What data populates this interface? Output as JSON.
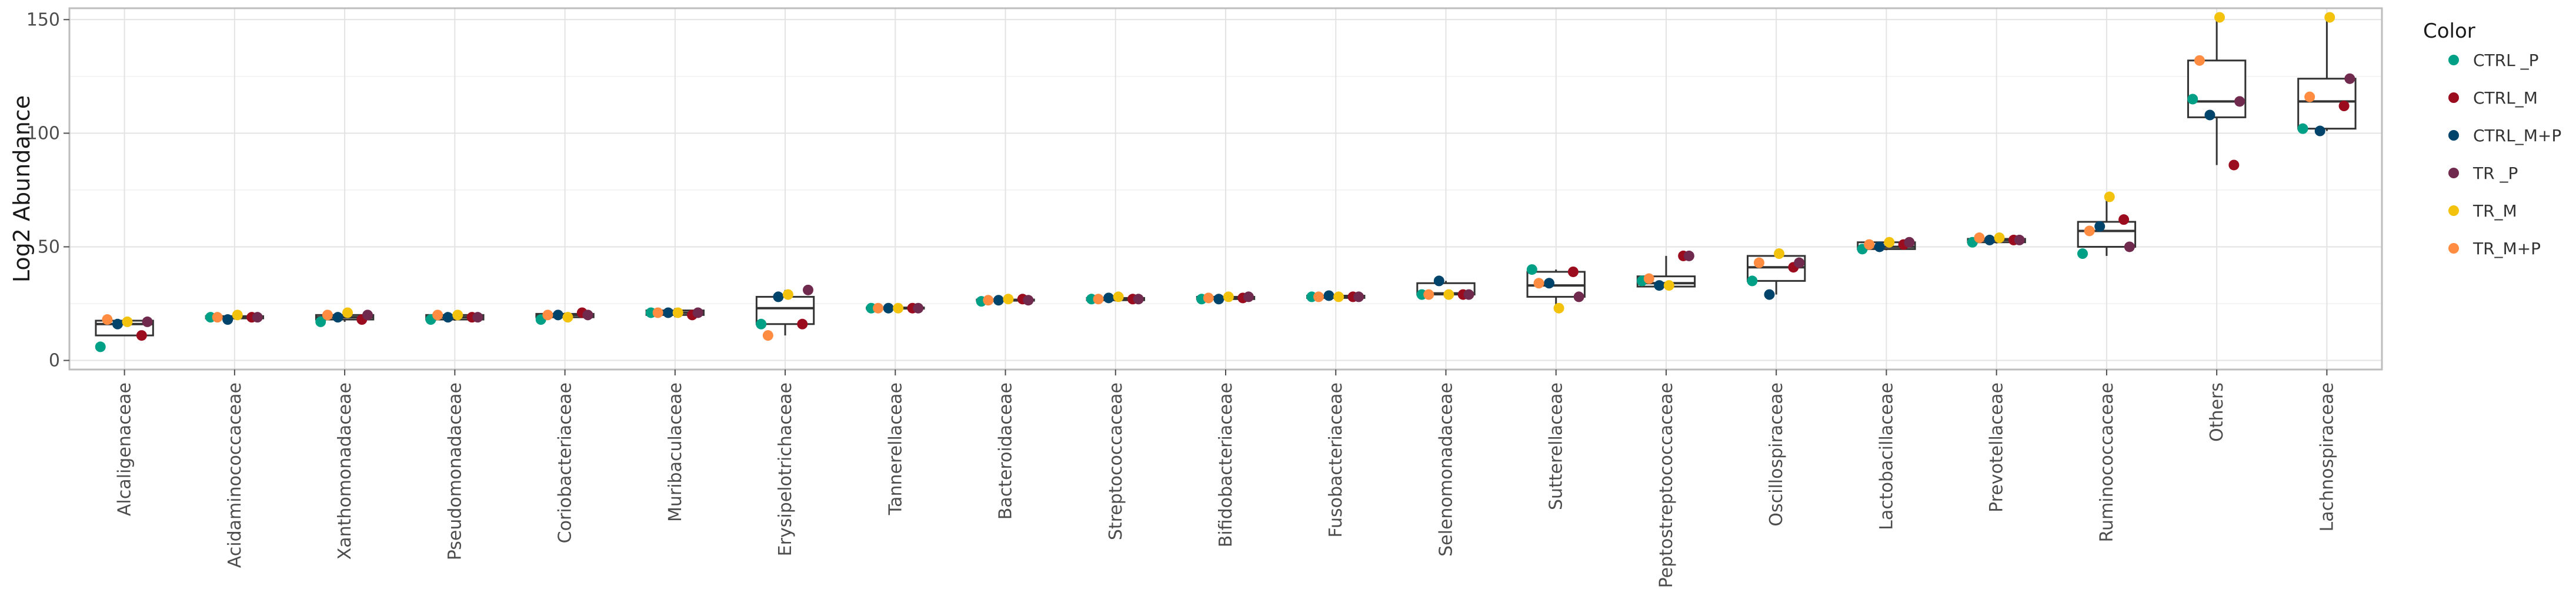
{
  "chart_data": {
    "type": "box",
    "title": "",
    "xlabel": "",
    "ylabel": "Log2 Abundance",
    "ylim": [
      -4,
      155
    ],
    "y_ticks": [
      0,
      50,
      100,
      150
    ],
    "grid": true,
    "legend_position": "right",
    "legend": {
      "title": "Color",
      "entries": [
        {
          "name": "CTRL _P",
          "color": "#00a087"
        },
        {
          "name": "CTRL_M",
          "color": "#9b0d1e"
        },
        {
          "name": "CTRL_M+P",
          "color": "#00446b"
        },
        {
          "name": "TR _P",
          "color": "#702a4e"
        },
        {
          "name": "TR_M",
          "color": "#f2c20c"
        },
        {
          "name": "TR_M+P",
          "color": "#ff8c40"
        }
      ]
    },
    "categories": [
      "Alcaligenaceae",
      "Acidaminococcaceae",
      "Xanthomonadaceae",
      "Pseudomonadaceae",
      "Coriobacteriaceae",
      "Muribaculaceae",
      "Erysipelotrichaceae",
      "Tannerellaceae",
      "Bacteroidaceae",
      "Streptococcaceae",
      "Bifidobacteriaceae",
      "Fusobacteriaceae",
      "Selenomonadaceae",
      "Sutterellaceae",
      "Peptostreptococcaceae",
      "Oscillospiraceae",
      "Lactobacillaceae",
      "Prevotellaceae",
      "Ruminococcaceae",
      "Others",
      "Lachnospiraceae"
    ],
    "boxes": [
      {
        "min": 11,
        "q1": 11,
        "median": 16,
        "q3": 17.5,
        "max": 18
      },
      {
        "min": 18,
        "q1": 18.5,
        "median": 19,
        "q3": 19.5,
        "max": 20
      },
      {
        "min": 17,
        "q1": 18,
        "median": 19,
        "q3": 20,
        "max": 21
      },
      {
        "min": 17.5,
        "q1": 18,
        "median": 19,
        "q3": 20,
        "max": 20.5
      },
      {
        "min": 18,
        "q1": 19,
        "median": 20,
        "q3": 20.5,
        "max": 21
      },
      {
        "min": 19,
        "q1": 20,
        "median": 21,
        "q3": 22,
        "max": 23
      },
      {
        "min": 11,
        "q1": 16,
        "median": 23,
        "q3": 28,
        "max": 31
      },
      {
        "min": 22.5,
        "q1": 22.8,
        "median": 23,
        "q3": 23.3,
        "max": 24
      },
      {
        "min": 26,
        "q1": 26.3,
        "median": 26.5,
        "q3": 26.8,
        "max": 27
      },
      {
        "min": 26,
        "q1": 26.5,
        "median": 27,
        "q3": 27.5,
        "max": 28
      },
      {
        "min": 26.5,
        "q1": 27,
        "median": 27.5,
        "q3": 28,
        "max": 28.5
      },
      {
        "min": 27,
        "q1": 27.5,
        "median": 28,
        "q3": 28.5,
        "max": 29
      },
      {
        "min": 28.5,
        "q1": 29,
        "median": 29.5,
        "q3": 34,
        "max": 35
      },
      {
        "min": 23,
        "q1": 28,
        "median": 33,
        "q3": 39,
        "max": 40
      },
      {
        "min": 32,
        "q1": 32.5,
        "median": 34,
        "q3": 37,
        "max": 46
      },
      {
        "min": 29,
        "q1": 35,
        "median": 41,
        "q3": 46,
        "max": 47
      },
      {
        "min": 48.5,
        "q1": 49,
        "median": 50,
        "q3": 52,
        "max": 52.5
      },
      {
        "min": 51.5,
        "q1": 52,
        "median": 53,
        "q3": 53.5,
        "max": 54
      },
      {
        "min": 46,
        "q1": 50,
        "median": 57,
        "q3": 61,
        "max": 72
      },
      {
        "min": 86,
        "q1": 107,
        "median": 114,
        "q3": 132,
        "max": 151
      },
      {
        "min": 101,
        "q1": 102,
        "median": 114,
        "q3": 124,
        "max": 151
      }
    ],
    "points": [
      [
        {
          "g": "CTRL _P",
          "y": 6
        },
        {
          "g": "CTRL_M",
          "y": 11
        },
        {
          "g": "CTRL_M+P",
          "y": 16
        },
        {
          "g": "TR _P",
          "y": 17
        },
        {
          "g": "TR_M",
          "y": 17
        },
        {
          "g": "TR_M+P",
          "y": 18
        }
      ],
      [
        {
          "g": "CTRL _P",
          "y": 19
        },
        {
          "g": "CTRL_M",
          "y": 19
        },
        {
          "g": "CTRL_M+P",
          "y": 18
        },
        {
          "g": "TR _P",
          "y": 19
        },
        {
          "g": "TR_M",
          "y": 20
        },
        {
          "g": "TR_M+P",
          "y": 19
        }
      ],
      [
        {
          "g": "CTRL _P",
          "y": 17
        },
        {
          "g": "CTRL_M",
          "y": 18
        },
        {
          "g": "CTRL_M+P",
          "y": 19
        },
        {
          "g": "TR _P",
          "y": 20
        },
        {
          "g": "TR_M",
          "y": 21
        },
        {
          "g": "TR_M+P",
          "y": 20
        }
      ],
      [
        {
          "g": "CTRL _P",
          "y": 18
        },
        {
          "g": "CTRL_M",
          "y": 19
        },
        {
          "g": "CTRL_M+P",
          "y": 19
        },
        {
          "g": "TR _P",
          "y": 19
        },
        {
          "g": "TR_M",
          "y": 20
        },
        {
          "g": "TR_M+P",
          "y": 20
        }
      ],
      [
        {
          "g": "CTRL _P",
          "y": 18
        },
        {
          "g": "CTRL_M",
          "y": 21
        },
        {
          "g": "CTRL_M+P",
          "y": 20
        },
        {
          "g": "TR _P",
          "y": 20
        },
        {
          "g": "TR_M",
          "y": 19
        },
        {
          "g": "TR_M+P",
          "y": 20
        }
      ],
      [
        {
          "g": "CTRL _P",
          "y": 21
        },
        {
          "g": "CTRL_M",
          "y": 20
        },
        {
          "g": "CTRL_M+P",
          "y": 21
        },
        {
          "g": "TR _P",
          "y": 21
        },
        {
          "g": "TR_M",
          "y": 21
        },
        {
          "g": "TR_M+P",
          "y": 21
        }
      ],
      [
        {
          "g": "CTRL _P",
          "y": 16
        },
        {
          "g": "CTRL_M",
          "y": 16
        },
        {
          "g": "CTRL_M+P",
          "y": 28
        },
        {
          "g": "TR _P",
          "y": 31
        },
        {
          "g": "TR_M",
          "y": 29
        },
        {
          "g": "TR_M+P",
          "y": 11
        }
      ],
      [
        {
          "g": "CTRL _P",
          "y": 23
        },
        {
          "g": "CTRL_M",
          "y": 23
        },
        {
          "g": "CTRL_M+P",
          "y": 23
        },
        {
          "g": "TR _P",
          "y": 23
        },
        {
          "g": "TR_M",
          "y": 23
        },
        {
          "g": "TR_M+P",
          "y": 23
        }
      ],
      [
        {
          "g": "CTRL _P",
          "y": 26
        },
        {
          "g": "CTRL_M",
          "y": 27
        },
        {
          "g": "CTRL_M+P",
          "y": 26.5
        },
        {
          "g": "TR _P",
          "y": 26.5
        },
        {
          "g": "TR_M",
          "y": 27
        },
        {
          "g": "TR_M+P",
          "y": 26.5
        }
      ],
      [
        {
          "g": "CTRL _P",
          "y": 27
        },
        {
          "g": "CTRL_M",
          "y": 27
        },
        {
          "g": "CTRL_M+P",
          "y": 27.5
        },
        {
          "g": "TR _P",
          "y": 27
        },
        {
          "g": "TR_M",
          "y": 28
        },
        {
          "g": "TR_M+P",
          "y": 27
        }
      ],
      [
        {
          "g": "CTRL _P",
          "y": 27
        },
        {
          "g": "CTRL_M",
          "y": 27.5
        },
        {
          "g": "CTRL_M+P",
          "y": 27
        },
        {
          "g": "TR _P",
          "y": 28
        },
        {
          "g": "TR_M",
          "y": 28
        },
        {
          "g": "TR_M+P",
          "y": 27.5
        }
      ],
      [
        {
          "g": "CTRL _P",
          "y": 28
        },
        {
          "g": "CTRL_M",
          "y": 28
        },
        {
          "g": "CTRL_M+P",
          "y": 28.5
        },
        {
          "g": "TR _P",
          "y": 28
        },
        {
          "g": "TR_M",
          "y": 28
        },
        {
          "g": "TR_M+P",
          "y": 28
        }
      ],
      [
        {
          "g": "CTRL _P",
          "y": 29
        },
        {
          "g": "CTRL_M",
          "y": 29
        },
        {
          "g": "CTRL_M+P",
          "y": 35
        },
        {
          "g": "TR _P",
          "y": 29
        },
        {
          "g": "TR_M",
          "y": 29
        },
        {
          "g": "TR_M+P",
          "y": 29
        }
      ],
      [
        {
          "g": "CTRL _P",
          "y": 40
        },
        {
          "g": "CTRL_M",
          "y": 39
        },
        {
          "g": "CTRL_M+P",
          "y": 34
        },
        {
          "g": "TR _P",
          "y": 28
        },
        {
          "g": "TR_M",
          "y": 23
        },
        {
          "g": "TR_M+P",
          "y": 34
        }
      ],
      [
        {
          "g": "CTRL _P",
          "y": 35
        },
        {
          "g": "CTRL_M",
          "y": 46
        },
        {
          "g": "CTRL_M+P",
          "y": 33
        },
        {
          "g": "TR _P",
          "y": 46
        },
        {
          "g": "TR_M",
          "y": 33
        },
        {
          "g": "TR_M+P",
          "y": 36
        }
      ],
      [
        {
          "g": "CTRL _P",
          "y": 35
        },
        {
          "g": "CTRL_M",
          "y": 41
        },
        {
          "g": "CTRL_M+P",
          "y": 29
        },
        {
          "g": "TR _P",
          "y": 43
        },
        {
          "g": "TR_M",
          "y": 47
        },
        {
          "g": "TR_M+P",
          "y": 43
        }
      ],
      [
        {
          "g": "CTRL _P",
          "y": 49
        },
        {
          "g": "CTRL_M",
          "y": 51
        },
        {
          "g": "CTRL_M+P",
          "y": 50
        },
        {
          "g": "TR _P",
          "y": 52
        },
        {
          "g": "TR_M",
          "y": 52
        },
        {
          "g": "TR_M+P",
          "y": 51
        }
      ],
      [
        {
          "g": "CTRL _P",
          "y": 52
        },
        {
          "g": "CTRL_M",
          "y": 53
        },
        {
          "g": "CTRL_M+P",
          "y": 53
        },
        {
          "g": "TR _P",
          "y": 53
        },
        {
          "g": "TR_M",
          "y": 54
        },
        {
          "g": "TR_M+P",
          "y": 54
        }
      ],
      [
        {
          "g": "CTRL _P",
          "y": 47
        },
        {
          "g": "CTRL_M",
          "y": 62
        },
        {
          "g": "CTRL_M+P",
          "y": 59
        },
        {
          "g": "TR _P",
          "y": 50
        },
        {
          "g": "TR_M",
          "y": 72
        },
        {
          "g": "TR_M+P",
          "y": 57
        }
      ],
      [
        {
          "g": "CTRL _P",
          "y": 115
        },
        {
          "g": "CTRL_M",
          "y": 86
        },
        {
          "g": "CTRL_M+P",
          "y": 108
        },
        {
          "g": "TR _P",
          "y": 114
        },
        {
          "g": "TR_M",
          "y": 151
        },
        {
          "g": "TR_M+P",
          "y": 132
        }
      ],
      [
        {
          "g": "CTRL _P",
          "y": 102
        },
        {
          "g": "CTRL_M",
          "y": 112
        },
        {
          "g": "CTRL_M+P",
          "y": 101
        },
        {
          "g": "TR _P",
          "y": 124
        },
        {
          "g": "TR_M",
          "y": 151
        },
        {
          "g": "TR_M+P",
          "y": 116
        }
      ]
    ]
  }
}
